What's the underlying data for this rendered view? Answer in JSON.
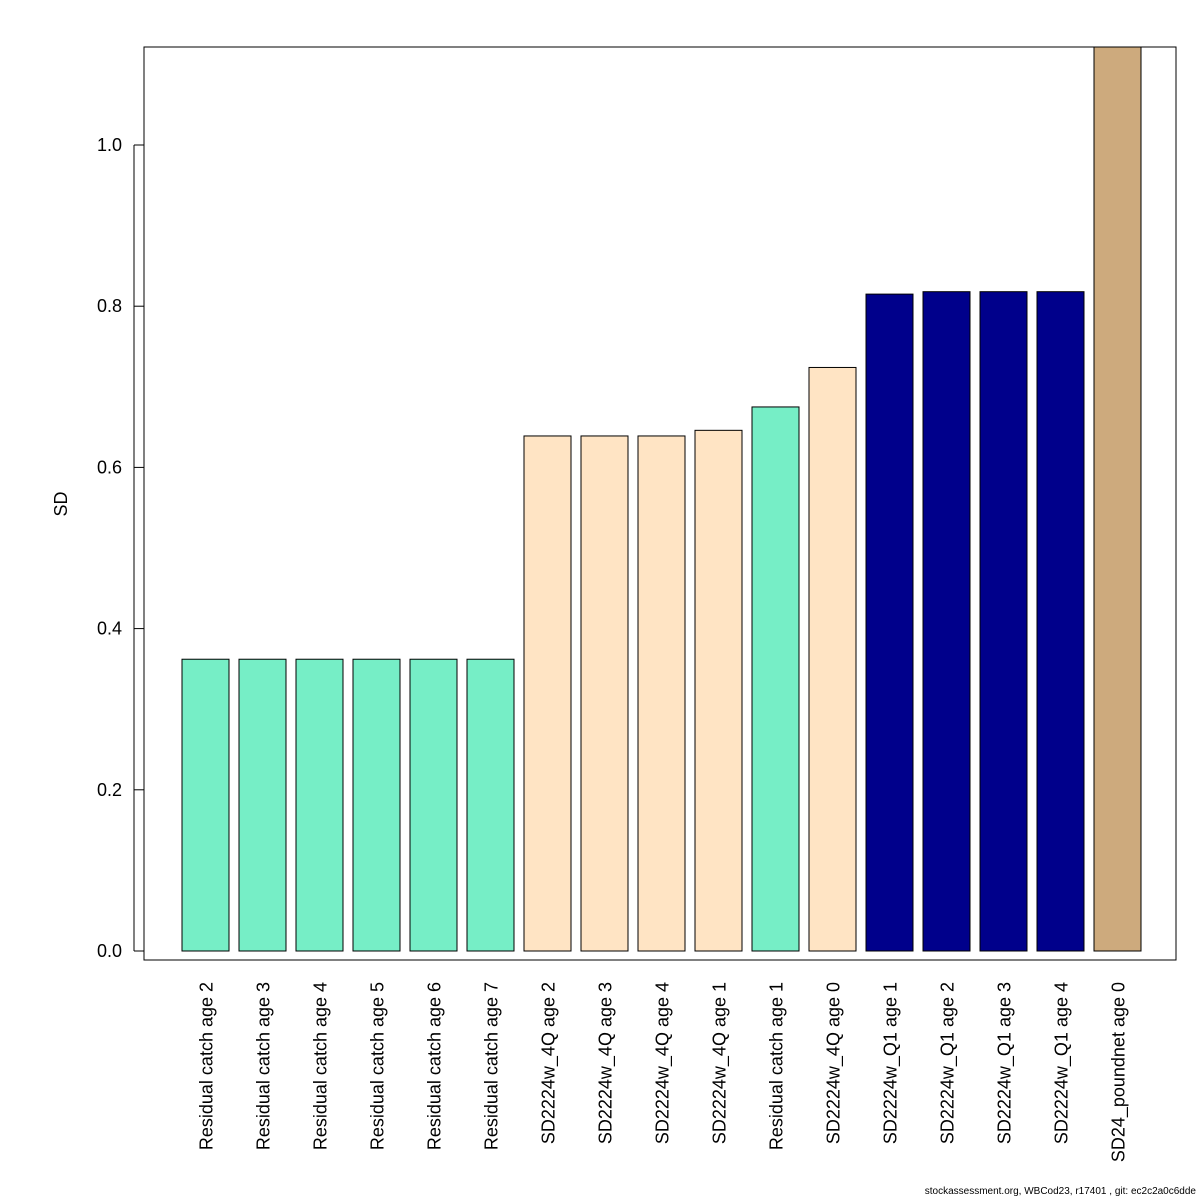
{
  "chart_data": {
    "type": "bar",
    "title": "",
    "xlabel": "",
    "ylabel": "SD",
    "ylim": [
      0,
      1.12
    ],
    "yticks": [
      "0.0",
      "0.2",
      "0.4",
      "0.6",
      "0.8",
      "1.0"
    ],
    "grid": false,
    "legend": "none",
    "categories": [
      "Residual catch age 2",
      "Residual catch age 3",
      "Residual catch age 4",
      "Residual catch age 5",
      "Residual catch age 6",
      "Residual catch age 7",
      "SD2224w_4Q age 2",
      "SD2224w_4Q age 3",
      "SD2224w_4Q age 4",
      "SD2224w_4Q age 1",
      "Residual catch age 1",
      "SD2224w_4Q age 0",
      "SD2224w_Q1 age 1",
      "SD2224w_Q1 age 2",
      "SD2224w_Q1 age 3",
      "SD2224w_Q1 age 4",
      "SD24_poundnet age 0"
    ],
    "values": [
      0.362,
      0.362,
      0.362,
      0.362,
      0.362,
      0.362,
      0.639,
      0.639,
      0.639,
      0.646,
      0.675,
      0.724,
      0.815,
      0.818,
      0.818,
      0.818,
      1.13
    ],
    "bar_colors": [
      "#76EEC6",
      "#76EEC6",
      "#76EEC6",
      "#76EEC6",
      "#76EEC6",
      "#76EEC6",
      "#FFE4C4",
      "#FFE4C4",
      "#FFE4C4",
      "#FFE4C4",
      "#76EEC6",
      "#FFE4C4",
      "#00008B",
      "#00008B",
      "#00008B",
      "#00008B",
      "#CDAA7D"
    ]
  },
  "footer": "stockassessment.org, WBCod23, r17401 , git: ec2c2a0c6dde"
}
